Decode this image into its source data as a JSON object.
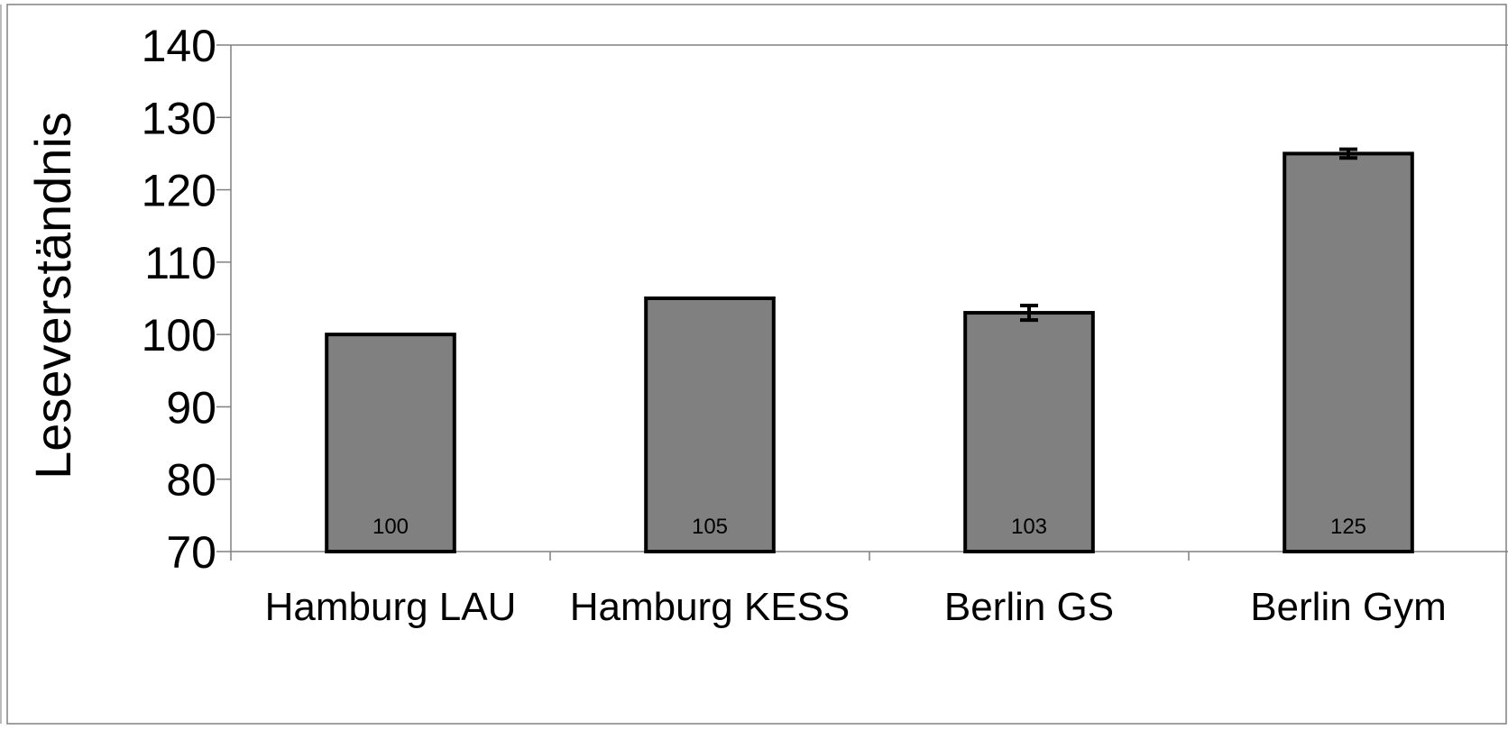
{
  "chart_data": {
    "type": "bar",
    "title": "",
    "xlabel": "",
    "ylabel": "Leseverständnis",
    "ylim": [
      70,
      140
    ],
    "yticks": [
      "70",
      "80",
      "90",
      "100",
      "110",
      "120",
      "130",
      "140"
    ],
    "categories": [
      "Hamburg LAU",
      "Hamburg KESS",
      "Berlin GS",
      "Berlin Gym"
    ],
    "values": [
      100,
      105,
      103,
      125
    ],
    "value_labels": [
      "100",
      "105",
      "103",
      "125"
    ],
    "error_bars": [
      null,
      null,
      1,
      0.6
    ],
    "bar_color": "#808080",
    "grid": false,
    "legend": "none"
  }
}
